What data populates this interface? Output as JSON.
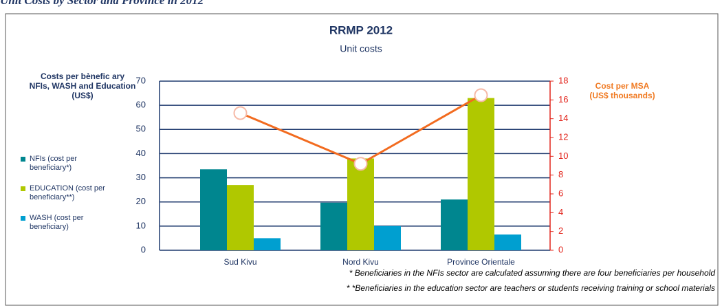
{
  "heading": "Unit Costs by Sector and Province in 2012",
  "chart_data": {
    "type": "bar",
    "title": "RRMP 2012",
    "subtitle": "Unit costs",
    "y_label": "Costs per bènefic ary\nNFIs, WASH and Education\n(US$)",
    "y2_label": "Cost per MSA\n(US$ thousands)",
    "categories": [
      "Sud Kivu",
      "Nord Kivu",
      "Province Orientale"
    ],
    "series": [
      {
        "name": "NFIs (cost per beneficiary*)",
        "color": "#00868f",
        "values": [
          33.5,
          19.7,
          21
        ]
      },
      {
        "name": "EDUCATION (cost per beneficiary**)",
        "color": "#b0c800",
        "values": [
          27,
          38,
          63
        ]
      },
      {
        "name": "WASH (cost per beneficiary)",
        "color": "#009fd0",
        "values": [
          5,
          10,
          6.5
        ]
      },
      {
        "type": "line",
        "axis": "y2",
        "color": "#f26b1f",
        "values": [
          14.6,
          9.2,
          16.5
        ]
      }
    ],
    "ylim": [
      0,
      70
    ],
    "yticks": [
      0,
      10,
      20,
      30,
      40,
      50,
      60,
      70
    ],
    "y2lim": [
      0,
      18
    ],
    "y2ticks": [
      0,
      2,
      4,
      6,
      8,
      10,
      12,
      14,
      16,
      18
    ],
    "grid": true,
    "notes": [
      "* Beneficiaries in the NFIs sector are calculated assuming there are four beneficiaries per household",
      "* *Beneficiaries in the education sector are teachers or students receiving training or school materials"
    ]
  }
}
